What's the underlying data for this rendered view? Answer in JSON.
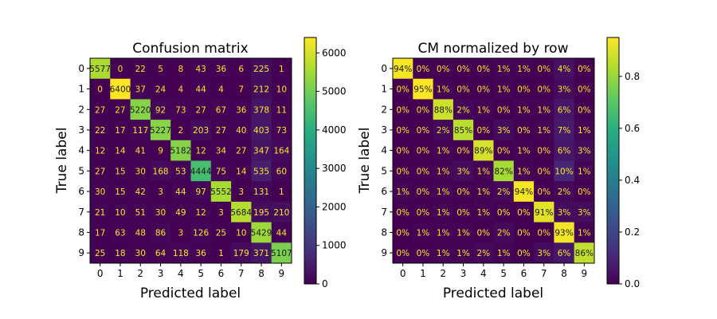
{
  "chart_data": [
    {
      "type": "heatmap",
      "title": "Confusion matrix",
      "xlabel": "Predicted label",
      "ylabel": "True label",
      "x_ticks": [
        "0",
        "1",
        "2",
        "3",
        "4",
        "5",
        "6",
        "7",
        "8",
        "9"
      ],
      "y_ticks": [
        "0",
        "1",
        "2",
        "3",
        "4",
        "5",
        "6",
        "7",
        "8",
        "9"
      ],
      "values": [
        [
          5577,
          0,
          22,
          5,
          8,
          43,
          36,
          6,
          225,
          1
        ],
        [
          0,
          6400,
          37,
          24,
          4,
          44,
          4,
          7,
          212,
          10
        ],
        [
          27,
          27,
          5220,
          92,
          73,
          27,
          67,
          36,
          378,
          11
        ],
        [
          22,
          17,
          117,
          5227,
          2,
          203,
          27,
          40,
          403,
          73
        ],
        [
          12,
          14,
          41,
          9,
          5182,
          12,
          34,
          27,
          347,
          164
        ],
        [
          27,
          15,
          30,
          168,
          53,
          4444,
          75,
          14,
          535,
          60
        ],
        [
          30,
          15,
          42,
          3,
          44,
          97,
          5552,
          3,
          131,
          1
        ],
        [
          21,
          10,
          51,
          30,
          49,
          12,
          3,
          5684,
          195,
          210
        ],
        [
          17,
          63,
          48,
          86,
          3,
          126,
          25,
          10,
          5429,
          44
        ],
        [
          25,
          18,
          30,
          64,
          118,
          36,
          1,
          179,
          371,
          5107
        ]
      ],
      "cell_labels": [
        [
          "5577",
          "0",
          "22",
          "5",
          "8",
          "43",
          "36",
          "6",
          "225",
          "1"
        ],
        [
          "0",
          "6400",
          "37",
          "24",
          "4",
          "44",
          "4",
          "7",
          "212",
          "10"
        ],
        [
          "27",
          "27",
          "5220",
          "92",
          "73",
          "27",
          "67",
          "36",
          "378",
          "11"
        ],
        [
          "22",
          "17",
          "117",
          "5227",
          "2",
          "203",
          "27",
          "40",
          "403",
          "73"
        ],
        [
          "12",
          "14",
          "41",
          "9",
          "5182",
          "12",
          "34",
          "27",
          "347",
          "164"
        ],
        [
          "27",
          "15",
          "30",
          "168",
          "53",
          "4444",
          "75",
          "14",
          "535",
          "60"
        ],
        [
          "30",
          "15",
          "42",
          "3",
          "44",
          "97",
          "5552",
          "3",
          "131",
          "1"
        ],
        [
          "21",
          "10",
          "51",
          "30",
          "49",
          "12",
          "3",
          "5684",
          "195",
          "210"
        ],
        [
          "17",
          "63",
          "48",
          "86",
          "3",
          "126",
          "25",
          "10",
          "5429",
          "44"
        ],
        [
          "25",
          "18",
          "30",
          "64",
          "118",
          "36",
          "1",
          "179",
          "371",
          "5107"
        ]
      ],
      "vmin": 0,
      "vmax": 6400,
      "colorbar_ticks": [
        0,
        1000,
        2000,
        3000,
        4000,
        5000,
        6000
      ],
      "colorbar_tick_labels": [
        "0",
        "1000",
        "2000",
        "3000",
        "4000",
        "5000",
        "6000"
      ],
      "colormap": "viridis",
      "grid": false
    },
    {
      "type": "heatmap",
      "title": "CM normalized by row",
      "xlabel": "Predicted label",
      "ylabel": "True label",
      "x_ticks": [
        "0",
        "1",
        "2",
        "3",
        "4",
        "5",
        "6",
        "7",
        "8",
        "9"
      ],
      "y_ticks": [
        "0",
        "1",
        "2",
        "3",
        "4",
        "5",
        "6",
        "7",
        "8",
        "9"
      ],
      "values": [
        [
          0.94,
          0,
          0,
          0,
          0,
          0.01,
          0.01,
          0,
          0.04,
          0
        ],
        [
          0,
          0.95,
          0.01,
          0,
          0,
          0.01,
          0,
          0,
          0.03,
          0
        ],
        [
          0,
          0,
          0.88,
          0.02,
          0.01,
          0,
          0.01,
          0.01,
          0.06,
          0
        ],
        [
          0,
          0,
          0.02,
          0.85,
          0,
          0.03,
          0,
          0.01,
          0.07,
          0.01
        ],
        [
          0,
          0,
          0.01,
          0,
          0.89,
          0,
          0.01,
          0,
          0.06,
          0.03
        ],
        [
          0,
          0,
          0.01,
          0.03,
          0.01,
          0.82,
          0.01,
          0,
          0.1,
          0.01
        ],
        [
          0.01,
          0,
          0.01,
          0,
          0.01,
          0.02,
          0.94,
          0,
          0.02,
          0
        ],
        [
          0,
          0,
          0.01,
          0,
          0.01,
          0,
          0,
          0.91,
          0.03,
          0.03
        ],
        [
          0,
          0.01,
          0.01,
          0.01,
          0,
          0.02,
          0,
          0,
          0.93,
          0.01
        ],
        [
          0,
          0,
          0.01,
          0.01,
          0.02,
          0.01,
          0,
          0.03,
          0.06,
          0.86
        ]
      ],
      "cell_labels": [
        [
          "94%",
          "0%",
          "0%",
          "0%",
          "0%",
          "1%",
          "1%",
          "0%",
          "4%",
          "0%"
        ],
        [
          "0%",
          "95%",
          "1%",
          "0%",
          "0%",
          "1%",
          "0%",
          "0%",
          "3%",
          "0%"
        ],
        [
          "0%",
          "0%",
          "88%",
          "2%",
          "1%",
          "0%",
          "1%",
          "1%",
          "6%",
          "0%"
        ],
        [
          "0%",
          "0%",
          "2%",
          "85%",
          "0%",
          "3%",
          "0%",
          "1%",
          "7%",
          "1%"
        ],
        [
          "0%",
          "0%",
          "1%",
          "0%",
          "89%",
          "0%",
          "1%",
          "0%",
          "6%",
          "3%"
        ],
        [
          "0%",
          "0%",
          "1%",
          "3%",
          "1%",
          "82%",
          "1%",
          "0%",
          "10%",
          "1%"
        ],
        [
          "1%",
          "0%",
          "1%",
          "0%",
          "1%",
          "2%",
          "94%",
          "0%",
          "2%",
          "0%"
        ],
        [
          "0%",
          "0%",
          "1%",
          "0%",
          "1%",
          "0%",
          "0%",
          "91%",
          "3%",
          "3%"
        ],
        [
          "0%",
          "1%",
          "1%",
          "1%",
          "0%",
          "2%",
          "0%",
          "0%",
          "93%",
          "1%"
        ],
        [
          "0%",
          "0%",
          "1%",
          "1%",
          "2%",
          "1%",
          "0%",
          "3%",
          "6%",
          "86%"
        ]
      ],
      "vmin": 0,
      "vmax": 0.95,
      "colorbar_ticks": [
        0,
        0.2,
        0.4,
        0.6,
        0.8
      ],
      "colorbar_tick_labels": [
        "0.0",
        "0.2",
        "0.4",
        "0.6",
        "0.8"
      ],
      "colormap": "viridis",
      "grid": false
    }
  ]
}
